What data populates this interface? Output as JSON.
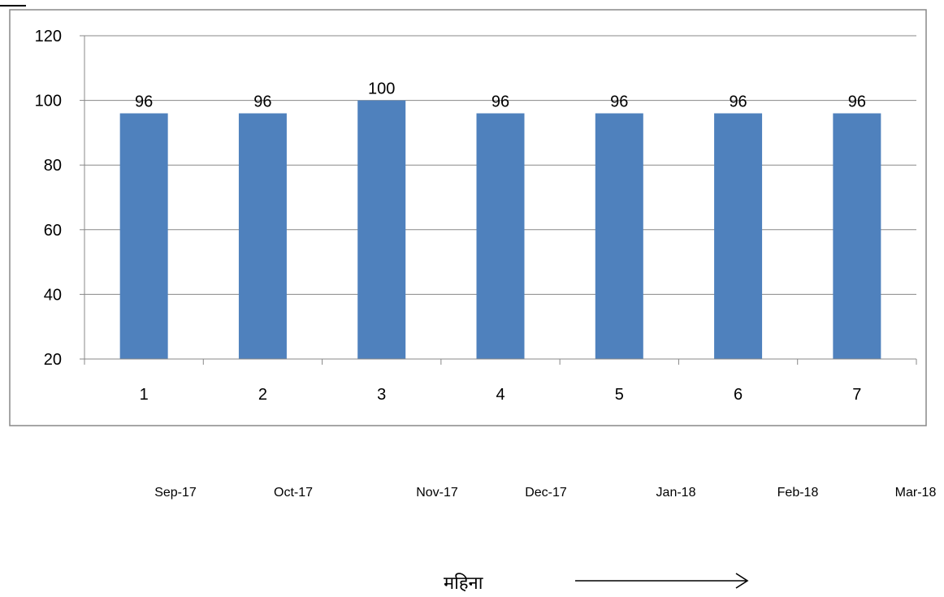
{
  "chart_data": {
    "type": "bar",
    "categories": [
      "1",
      "2",
      "3",
      "4",
      "5",
      "6",
      "7"
    ],
    "values": [
      96,
      96,
      100,
      96,
      96,
      96,
      96
    ],
    "data_labels": [
      "96",
      "96",
      "100",
      "96",
      "96",
      "96",
      "96"
    ],
    "y_ticks": [
      "20",
      "40",
      "60",
      "80",
      "100",
      "120"
    ],
    "ylim": [
      20,
      120
    ],
    "grid": true,
    "legend": "none",
    "bar_color": "#4F81BD"
  },
  "months": [
    "Sep-17",
    "Oct-17",
    "Nov-17",
    "Dec-17",
    "Jan-18",
    "Feb-18",
    "Mar-18"
  ],
  "caption": "महिना",
  "icons": {
    "arrow": "arrow-right-icon"
  }
}
